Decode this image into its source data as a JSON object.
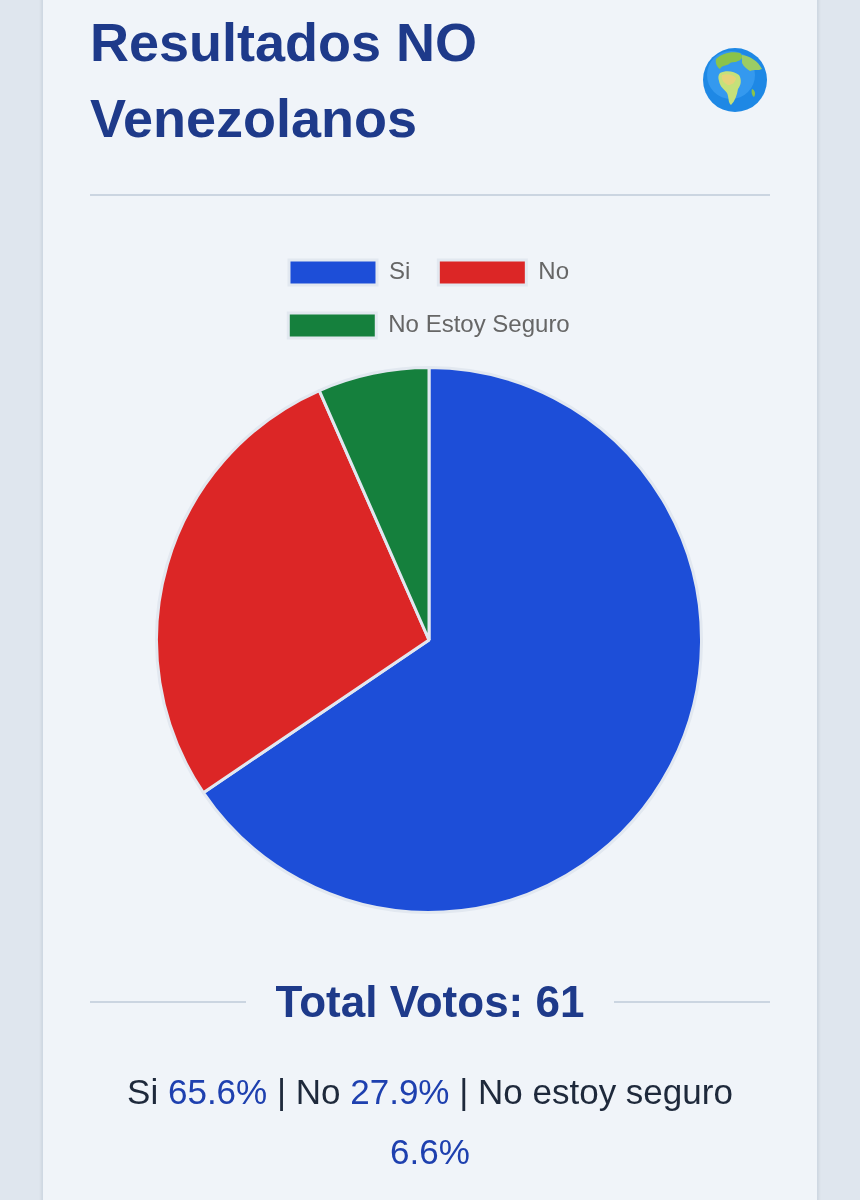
{
  "chart_data": {
    "type": "pie",
    "title": "Resultados NO Venezolanos",
    "categories": [
      "Si",
      "No",
      "No Estoy Seguro"
    ],
    "values": [
      65.6,
      27.9,
      6.6
    ],
    "colors": [
      "#1d4ed8",
      "#dc2626",
      "#15803d"
    ],
    "legend": "top",
    "annotations": [
      "Total Votos: 61",
      "Si 65.6% | No 27.9% | No estoy seguro 6.6%"
    ]
  }
}
